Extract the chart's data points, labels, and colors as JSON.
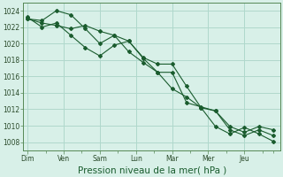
{
  "background_color": "#cce8e0",
  "plot_bg_color": "#d8f0e8",
  "grid_color": "#b0d8cc",
  "line_color": "#1a5c2e",
  "xlabel": "Pression niveau de la mer( hPa )",
  "xlabel_fontsize": 7.5,
  "xtick_labels": [
    "Dim",
    "Ven",
    "Sam",
    "Lun",
    "Mar",
    "Mer",
    "Jeu"
  ],
  "ylim": [
    1007.0,
    1025.0
  ],
  "ytick_vals": [
    1008,
    1010,
    1012,
    1014,
    1016,
    1018,
    1020,
    1022,
    1024
  ],
  "line1_x": [
    0,
    1,
    2,
    3,
    4,
    5,
    6,
    7,
    8,
    9,
    10,
    11,
    12,
    13,
    14,
    15,
    16,
    17
  ],
  "line1_y": [
    1023.0,
    1022.5,
    1022.2,
    1021.8,
    1022.2,
    1021.5,
    1021.0,
    1020.3,
    1018.3,
    1017.5,
    1017.5,
    1014.8,
    1012.2,
    1011.8,
    1009.9,
    1009.2,
    1009.9,
    1009.5
  ],
  "line2_x": [
    0,
    1,
    2,
    3,
    4,
    5,
    6,
    7,
    8,
    9,
    10,
    11,
    12,
    13,
    14,
    15,
    16,
    17
  ],
  "line2_y": [
    1023.0,
    1022.8,
    1024.0,
    1023.5,
    1021.8,
    1020.0,
    1021.0,
    1019.0,
    1017.7,
    1016.5,
    1014.5,
    1013.5,
    1012.2,
    1009.9,
    1009.0,
    1009.8,
    1009.0,
    1008.1
  ],
  "line3_x": [
    0,
    1,
    2,
    3,
    4,
    5,
    6,
    7,
    8,
    9,
    10,
    11,
    12,
    13,
    14,
    15,
    16,
    17
  ],
  "line3_y": [
    1023.2,
    1022.0,
    1022.5,
    1021.0,
    1019.5,
    1018.5,
    1019.8,
    1020.3,
    1018.2,
    1016.5,
    1016.5,
    1012.8,
    1012.3,
    1011.8,
    1009.5,
    1008.8,
    1009.5,
    1008.8
  ],
  "xtick_positions": [
    0,
    2.5,
    5,
    7.5,
    10,
    12.5,
    15
  ],
  "minor_xtick_positions": [
    0,
    1.25,
    2.5,
    3.75,
    5,
    6.25,
    7.5,
    8.75,
    10,
    11.25,
    12.5,
    13.75,
    15,
    16.25,
    17
  ],
  "xlim": [
    -0.3,
    17.5
  ]
}
